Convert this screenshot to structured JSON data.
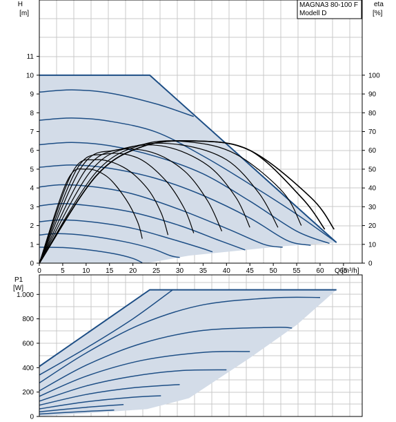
{
  "title": {
    "line1": "MAGNA3 80-100 F",
    "line2": "Modell D"
  },
  "colors": {
    "area": "#d3dce8",
    "area_edge": "#ffffff",
    "curve_blue": "#1d4e85",
    "curve_black": "#000000",
    "grid": "#c8c8c8",
    "frame": "#000000"
  },
  "chart_data": [
    {
      "type": "line",
      "name": "head_efficiency",
      "xlabel": "Q [m³/h]",
      "xlabel_q": "Q",
      "xlabel_unit": "[m³/h]",
      "ylabel_left": [
        "H",
        "[m]"
      ],
      "ylabel_right": [
        "eta",
        "[%]"
      ],
      "xlim": [
        0,
        69
      ],
      "ylim": [
        0,
        14
      ],
      "x_ticks": [
        0,
        5,
        10,
        15,
        20,
        25,
        30,
        35,
        40,
        45,
        50,
        55,
        60,
        65
      ],
      "y_ticks_left": [
        0,
        1,
        2,
        3,
        4,
        5,
        6,
        7,
        8,
        9,
        10,
        11
      ],
      "y_ticks_right": [
        0,
        10,
        20,
        30,
        40,
        50,
        60,
        70,
        80,
        90,
        100
      ],
      "y_right_scale": 10,
      "grid": true,
      "operating_area": [
        [
          0,
          10
        ],
        [
          23.6,
          10
        ],
        [
          63.5,
          1.1
        ],
        [
          52,
          0.9
        ],
        [
          32,
          0.4
        ],
        [
          23,
          0
        ],
        [
          0,
          0
        ]
      ],
      "head_curves": [
        [
          [
            0,
            10
          ],
          [
            23.6,
            10
          ],
          [
            63.5,
            1.1
          ]
        ],
        [
          [
            0,
            9.1
          ],
          [
            7,
            9.22
          ],
          [
            15,
            9.05
          ],
          [
            25,
            8.47
          ],
          [
            33,
            7.8
          ]
        ],
        [
          [
            0,
            7.6
          ],
          [
            7,
            7.72
          ],
          [
            15,
            7.55
          ],
          [
            25,
            6.97
          ],
          [
            35,
            5.7
          ],
          [
            45,
            4.2
          ],
          [
            55,
            2.6
          ],
          [
            63.5,
            1.1
          ]
        ],
        [
          [
            0,
            6.3
          ],
          [
            7,
            6.42
          ],
          [
            15,
            6.25
          ],
          [
            25,
            5.67
          ],
          [
            35,
            4.75
          ],
          [
            45,
            3.3
          ],
          [
            55,
            1.7
          ],
          [
            62,
            1.05
          ]
        ],
        [
          [
            0,
            5.1
          ],
          [
            7,
            5.22
          ],
          [
            15,
            5.05
          ],
          [
            25,
            4.5
          ],
          [
            35,
            3.6
          ],
          [
            45,
            2.4
          ],
          [
            53,
            1.2
          ],
          [
            58,
            0.95
          ]
        ],
        [
          [
            0,
            4.05
          ],
          [
            5,
            4.17
          ],
          [
            12,
            4.05
          ],
          [
            20,
            3.68
          ],
          [
            30,
            2.85
          ],
          [
            40,
            1.85
          ],
          [
            48,
            1.0
          ],
          [
            52,
            0.85
          ]
        ],
        [
          [
            0,
            3.05
          ],
          [
            5,
            3.17
          ],
          [
            12,
            3.02
          ],
          [
            20,
            2.7
          ],
          [
            30,
            2.0
          ],
          [
            38,
            1.25
          ],
          [
            44,
            0.7
          ]
        ],
        [
          [
            0,
            2.2
          ],
          [
            5,
            2.3
          ],
          [
            12,
            2.17
          ],
          [
            20,
            1.85
          ],
          [
            28,
            1.3
          ],
          [
            34,
            0.85
          ],
          [
            37,
            0.6
          ]
        ],
        [
          [
            0,
            1.5
          ],
          [
            4,
            1.57
          ],
          [
            10,
            1.47
          ],
          [
            18,
            1.15
          ],
          [
            24,
            0.78
          ],
          [
            28,
            0.4
          ],
          [
            30,
            0.3
          ]
        ],
        [
          [
            0,
            0.85
          ],
          [
            5,
            0.83
          ],
          [
            10,
            0.72
          ],
          [
            16,
            0.5
          ],
          [
            20,
            0.25
          ],
          [
            22,
            0.02
          ]
        ]
      ],
      "efficiency_curves": [
        [
          [
            0,
            0
          ],
          [
            12,
            46
          ],
          [
            22,
            62
          ],
          [
            33,
            65
          ],
          [
            45,
            60
          ],
          [
            58,
            35
          ],
          [
            63,
            18
          ]
        ],
        [
          [
            0,
            0
          ],
          [
            12,
            46
          ],
          [
            22,
            62
          ],
          [
            33,
            65
          ],
          [
            45,
            60
          ],
          [
            56,
            35
          ],
          [
            61,
            18
          ]
        ],
        [
          [
            0,
            0
          ],
          [
            12,
            48
          ],
          [
            22,
            63
          ],
          [
            32,
            64.5
          ],
          [
            42,
            58
          ],
          [
            52,
            38
          ],
          [
            56,
            20
          ]
        ],
        [
          [
            0,
            0
          ],
          [
            11,
            49
          ],
          [
            20,
            62
          ],
          [
            30,
            63
          ],
          [
            40,
            55
          ],
          [
            47,
            37
          ],
          [
            51,
            19
          ]
        ],
        [
          [
            0,
            0
          ],
          [
            10,
            50
          ],
          [
            18,
            61
          ],
          [
            27,
            62
          ],
          [
            36,
            52
          ],
          [
            42,
            35
          ],
          [
            45,
            19
          ]
        ],
        [
          [
            0,
            0
          ],
          [
            9,
            51
          ],
          [
            16,
            60
          ],
          [
            24,
            59
          ],
          [
            31,
            49
          ],
          [
            36,
            33
          ],
          [
            39,
            17
          ]
        ],
        [
          [
            0,
            0
          ],
          [
            8,
            50
          ],
          [
            14,
            58
          ],
          [
            21,
            56
          ],
          [
            27,
            44
          ],
          [
            31,
            29
          ],
          [
            33,
            16
          ]
        ],
        [
          [
            0,
            0
          ],
          [
            7,
            48
          ],
          [
            12,
            55
          ],
          [
            18,
            51
          ],
          [
            23,
            40
          ],
          [
            26,
            27
          ],
          [
            27.5,
            15
          ]
        ],
        [
          [
            0,
            0
          ],
          [
            6,
            44
          ],
          [
            10,
            50
          ],
          [
            14.5,
            46
          ],
          [
            18.5,
            34
          ],
          [
            21,
            22
          ],
          [
            22,
            13
          ]
        ]
      ]
    },
    {
      "type": "line",
      "name": "power",
      "ylabel": [
        "P1",
        "[W]"
      ],
      "xlim": [
        0,
        69
      ],
      "ylim": [
        0,
        1160
      ],
      "y_ticks": [
        0,
        200,
        400,
        600,
        800,
        1000
      ],
      "y_tick_labels": [
        "0",
        "200",
        "400",
        "600",
        "800",
        "1.000"
      ],
      "grid": true,
      "operating_area": [
        [
          0,
          410
        ],
        [
          23.6,
          1038
        ],
        [
          63.5,
          1038
        ],
        [
          55,
          750
        ],
        [
          45,
          480
        ],
        [
          32,
          150
        ],
        [
          23,
          60
        ],
        [
          0,
          0
        ]
      ],
      "power_curves": [
        [
          [
            0,
            410
          ],
          [
            23.6,
            1038
          ],
          [
            63.5,
            1038
          ]
        ],
        [
          [
            0,
            340
          ],
          [
            10,
            560
          ],
          [
            20,
            800
          ],
          [
            28.5,
            1038
          ]
        ],
        [
          [
            0,
            275
          ],
          [
            10,
            520
          ],
          [
            22,
            760
          ],
          [
            35,
            915
          ],
          [
            50,
            972
          ],
          [
            60,
            975
          ]
        ],
        [
          [
            0,
            210
          ],
          [
            10,
            420
          ],
          [
            22,
            600
          ],
          [
            35,
            705
          ],
          [
            50,
            730
          ],
          [
            54,
            725
          ]
        ],
        [
          [
            0,
            165
          ],
          [
            10,
            330
          ],
          [
            22,
            460
          ],
          [
            35,
            525
          ],
          [
            45,
            532
          ]
        ],
        [
          [
            0,
            125
          ],
          [
            10,
            250
          ],
          [
            20,
            330
          ],
          [
            30,
            375
          ],
          [
            40,
            382
          ]
        ],
        [
          [
            0,
            92
          ],
          [
            10,
            180
          ],
          [
            20,
            235
          ],
          [
            30,
            262
          ]
        ],
        [
          [
            0,
            62
          ],
          [
            10,
            120
          ],
          [
            20,
            158
          ],
          [
            26,
            170
          ]
        ],
        [
          [
            0,
            38
          ],
          [
            10,
            75
          ],
          [
            18,
            98
          ]
        ],
        [
          [
            0,
            20
          ],
          [
            10,
            42
          ],
          [
            16,
            52
          ]
        ]
      ]
    }
  ]
}
